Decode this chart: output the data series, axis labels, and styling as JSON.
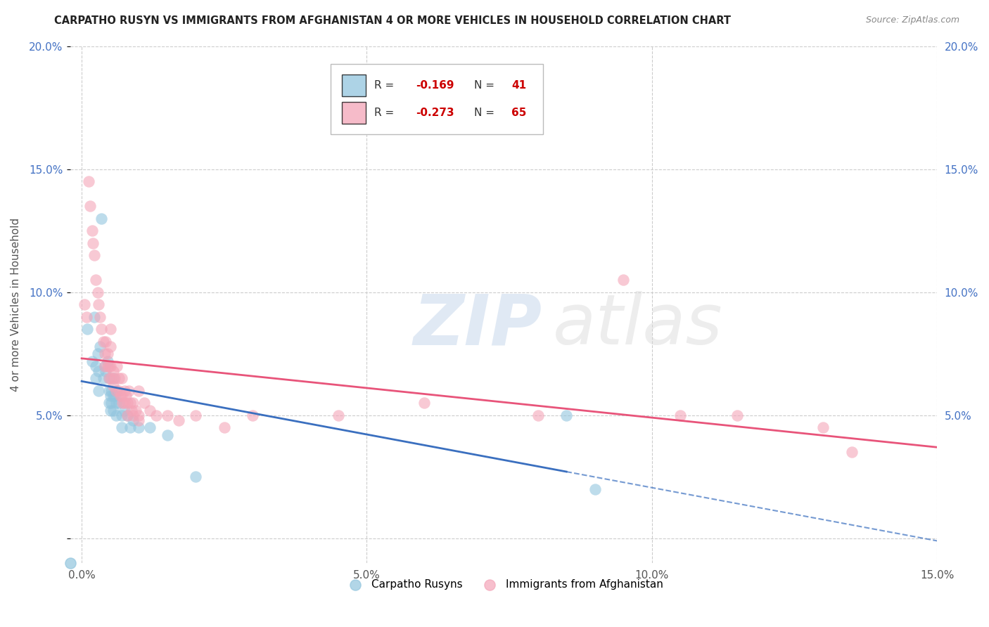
{
  "title": "CARPATHO RUSYN VS IMMIGRANTS FROM AFGHANISTAN 4 OR MORE VEHICLES IN HOUSEHOLD CORRELATION CHART",
  "source": "Source: ZipAtlas.com",
  "ylabel": "4 or more Vehicles in Household",
  "xlim": [
    0.0,
    15.0
  ],
  "ylim": [
    0.0,
    20.0
  ],
  "legend_label1": "Carpatho Rusyns",
  "legend_label2": "Immigrants from Afghanistan",
  "R1": -0.169,
  "N1": 41,
  "R2": -0.273,
  "N2": 65,
  "color_blue": "#92c5de",
  "color_pink": "#f4a5b8",
  "line_color_blue": "#3a6fbf",
  "line_color_pink": "#e8547a",
  "blue_points": [
    [
      0.1,
      8.5
    ],
    [
      0.18,
      7.2
    ],
    [
      0.22,
      9.0
    ],
    [
      0.25,
      7.0
    ],
    [
      0.25,
      6.5
    ],
    [
      0.28,
      7.5
    ],
    [
      0.3,
      6.8
    ],
    [
      0.3,
      6.0
    ],
    [
      0.32,
      7.8
    ],
    [
      0.35,
      13.0
    ],
    [
      0.38,
      6.5
    ],
    [
      0.4,
      7.0
    ],
    [
      0.42,
      6.8
    ],
    [
      0.45,
      7.2
    ],
    [
      0.48,
      6.5
    ],
    [
      0.48,
      6.0
    ],
    [
      0.48,
      5.5
    ],
    [
      0.5,
      5.8
    ],
    [
      0.5,
      5.2
    ],
    [
      0.52,
      6.0
    ],
    [
      0.52,
      5.5
    ],
    [
      0.55,
      6.5
    ],
    [
      0.55,
      5.8
    ],
    [
      0.55,
      5.2
    ],
    [
      0.58,
      5.8
    ],
    [
      0.6,
      5.5
    ],
    [
      0.6,
      5.0
    ],
    [
      0.62,
      6.0
    ],
    [
      0.65,
      5.5
    ],
    [
      0.7,
      5.0
    ],
    [
      0.7,
      4.5
    ],
    [
      0.75,
      5.2
    ],
    [
      0.8,
      5.0
    ],
    [
      0.85,
      4.5
    ],
    [
      0.9,
      4.8
    ],
    [
      1.0,
      4.5
    ],
    [
      1.2,
      4.5
    ],
    [
      1.5,
      4.2
    ],
    [
      2.0,
      2.5
    ],
    [
      8.5,
      5.0
    ],
    [
      9.0,
      2.0
    ]
  ],
  "pink_points": [
    [
      0.05,
      9.5
    ],
    [
      0.08,
      9.0
    ],
    [
      0.12,
      14.5
    ],
    [
      0.15,
      13.5
    ],
    [
      0.18,
      12.5
    ],
    [
      0.2,
      12.0
    ],
    [
      0.22,
      11.5
    ],
    [
      0.25,
      10.5
    ],
    [
      0.28,
      10.0
    ],
    [
      0.3,
      9.5
    ],
    [
      0.32,
      9.0
    ],
    [
      0.35,
      8.5
    ],
    [
      0.38,
      8.0
    ],
    [
      0.4,
      7.5
    ],
    [
      0.4,
      7.0
    ],
    [
      0.42,
      8.0
    ],
    [
      0.45,
      7.5
    ],
    [
      0.45,
      7.0
    ],
    [
      0.48,
      7.0
    ],
    [
      0.48,
      6.5
    ],
    [
      0.5,
      8.5
    ],
    [
      0.5,
      7.8
    ],
    [
      0.5,
      7.0
    ],
    [
      0.52,
      6.5
    ],
    [
      0.55,
      6.8
    ],
    [
      0.55,
      6.2
    ],
    [
      0.58,
      6.5
    ],
    [
      0.6,
      6.0
    ],
    [
      0.62,
      7.0
    ],
    [
      0.65,
      6.5
    ],
    [
      0.65,
      6.0
    ],
    [
      0.68,
      5.8
    ],
    [
      0.7,
      6.5
    ],
    [
      0.7,
      5.8
    ],
    [
      0.72,
      5.5
    ],
    [
      0.75,
      6.0
    ],
    [
      0.75,
      5.5
    ],
    [
      0.78,
      5.8
    ],
    [
      0.8,
      5.5
    ],
    [
      0.8,
      5.0
    ],
    [
      0.82,
      6.0
    ],
    [
      0.85,
      5.5
    ],
    [
      0.88,
      5.2
    ],
    [
      0.9,
      5.5
    ],
    [
      0.9,
      5.0
    ],
    [
      0.95,
      5.2
    ],
    [
      1.0,
      5.0
    ],
    [
      1.0,
      4.8
    ],
    [
      1.0,
      6.0
    ],
    [
      1.1,
      5.5
    ],
    [
      1.2,
      5.2
    ],
    [
      1.3,
      5.0
    ],
    [
      1.5,
      5.0
    ],
    [
      1.7,
      4.8
    ],
    [
      2.0,
      5.0
    ],
    [
      2.5,
      4.5
    ],
    [
      3.0,
      5.0
    ],
    [
      4.5,
      5.0
    ],
    [
      6.0,
      5.5
    ],
    [
      8.0,
      5.0
    ],
    [
      9.5,
      10.5
    ],
    [
      10.5,
      5.0
    ],
    [
      11.5,
      5.0
    ],
    [
      13.0,
      4.5
    ],
    [
      13.5,
      3.5
    ]
  ]
}
